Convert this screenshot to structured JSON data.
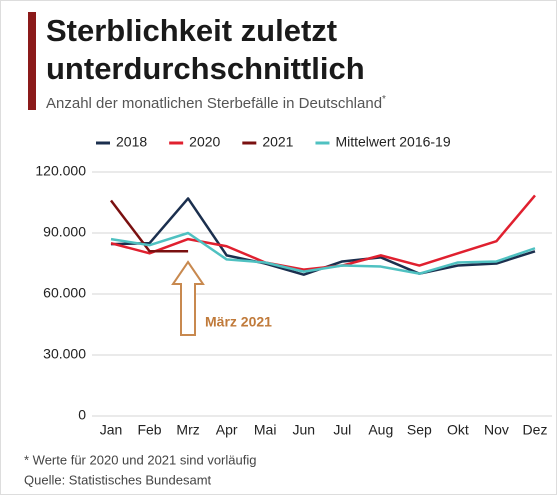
{
  "chart_data": {
    "type": "line",
    "title_lines": [
      "Sterblichkeit zuletzt",
      "unterdurchschnittlich"
    ],
    "subtitle": "Anzahl der monatlichen Sterbefälle in Deutschland",
    "subtitle_mark": "*",
    "categories": [
      "Jan",
      "Feb",
      "Mrz",
      "Apr",
      "Mai",
      "Jun",
      "Jul",
      "Aug",
      "Sep",
      "Okt",
      "Nov",
      "Dez"
    ],
    "series": [
      {
        "name": "2018",
        "color": "#1b2f4e",
        "values": [
          84500,
          85000,
          107000,
          79000,
          75000,
          69500,
          76000,
          78000,
          70000,
          74000,
          75000,
          81000
        ]
      },
      {
        "name": "2020",
        "color": "#e0202f",
        "values": [
          85000,
          80000,
          87000,
          83500,
          75500,
          72000,
          74000,
          79000,
          74000,
          80000,
          86000,
          108500
        ]
      },
      {
        "name": "2021",
        "color": "#7a1010",
        "values": [
          106000,
          81000,
          81000,
          null,
          null,
          null,
          null,
          null,
          null,
          null,
          null,
          null
        ]
      },
      {
        "name": "Mittelwert 2016-19",
        "color": "#4fc1c1",
        "values": [
          87000,
          84000,
          90000,
          77000,
          75500,
          71000,
          74000,
          73500,
          70000,
          75500,
          76000,
          82500
        ]
      }
    ],
    "ylim": [
      0,
      120000
    ],
    "yticks": [
      0,
      {
        "value": 30000,
        "label": "30.000"
      },
      {
        "value": 60000,
        "label": "60.000"
      },
      {
        "value": 90000,
        "label": "90.000"
      },
      {
        "value": 120000,
        "label": "120.000"
      }
    ],
    "grid": true,
    "annotation": "März 2021",
    "notes": [
      "* Werte für 2020 und 2021 sind vorläufig",
      "Quelle: Statistisches Bundesamt"
    ]
  }
}
